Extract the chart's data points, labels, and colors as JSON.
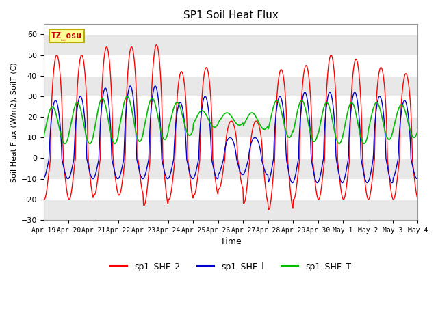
{
  "title": "SP1 Soil Heat Flux",
  "xlabel": "Time",
  "ylabel": "Soil Heat Flux (W/m2), SoilT (C)",
  "ylim": [
    -30,
    65
  ],
  "yticks": [
    -30,
    -20,
    -10,
    0,
    10,
    20,
    30,
    40,
    50,
    60
  ],
  "x_tick_labels": [
    "Apr 19",
    "Apr 20",
    "Apr 21",
    "Apr 22",
    "Apr 23",
    "Apr 24",
    "Apr 25",
    "Apr 26",
    "Apr 27",
    "Apr 28",
    "Apr 29",
    "Apr 30",
    "May 1",
    "May 2",
    "May 3",
    "May 4"
  ],
  "legend_labels": [
    "sp1_SHF_2",
    "sp1_SHF_l",
    "sp1_SHF_T"
  ],
  "legend_colors": [
    "#ff0000",
    "#0000cc",
    "#00bb00"
  ],
  "annotation_text": "TZ_osu",
  "annotation_bg": "#ffff99",
  "annotation_border": "#bbaa00",
  "plot_bg": "#ffffff",
  "band_color": "#e8e8e8",
  "line_colors": [
    "#ff0000",
    "#0000cc",
    "#00bb00"
  ],
  "title_fontsize": 11,
  "tick_fontsize": 7,
  "ylabel_fontsize": 8,
  "xlabel_fontsize": 9,
  "legend_fontsize": 9
}
